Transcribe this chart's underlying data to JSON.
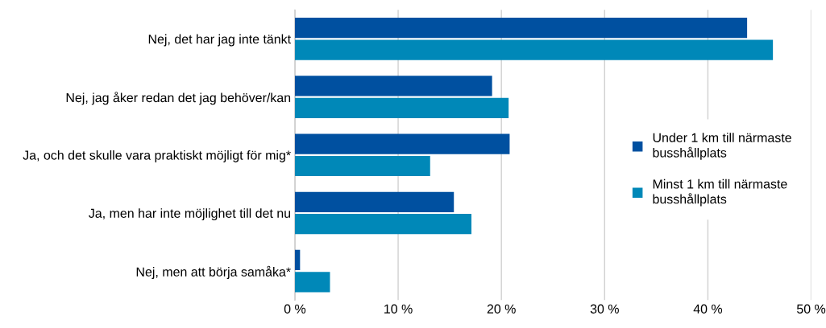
{
  "chart_data": {
    "type": "bar",
    "orientation": "horizontal",
    "categories": [
      "Nej, det har jag inte tänkt",
      "Nej, jag åker redan det jag behöver/kan",
      "Ja, och det skulle vara praktiskt möjligt för mig*",
      "Ja, men har inte möjlighet till det nu",
      "Nej, men att börja samåka*"
    ],
    "series": [
      {
        "name": "Under 1 km till närmaste\nbusshållplats",
        "color": "#0050a0",
        "values": [
          43.8,
          19.1,
          20.8,
          15.4,
          0.5
        ]
      },
      {
        "name": "Minst 1 km till närmaste\nbusshållplats",
        "color": "#0088b8",
        "values": [
          46.3,
          20.7,
          13.1,
          17.1,
          3.4
        ]
      }
    ],
    "xlim": [
      0,
      50
    ],
    "xticks": [
      {
        "value": 0,
        "label": "0 %"
      },
      {
        "value": 10,
        "label": "10 %"
      },
      {
        "value": 20,
        "label": "20 %"
      },
      {
        "value": 30,
        "label": "30 %"
      },
      {
        "value": 40,
        "label": "40 %"
      },
      {
        "value": 50,
        "label": "50 %"
      }
    ],
    "grid": "x",
    "legend": "right"
  }
}
